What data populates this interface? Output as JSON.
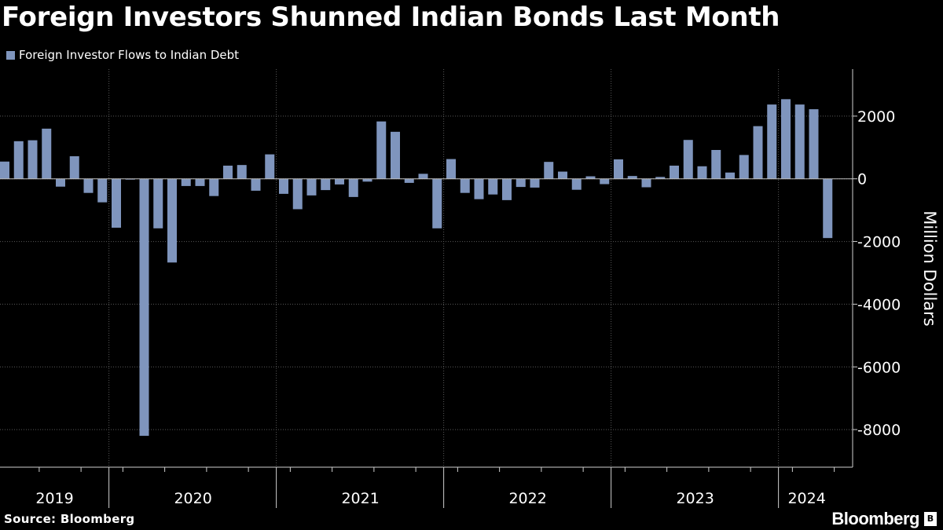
{
  "title": "Foreign Investors Shunned Indian Bonds Last Month",
  "legend": {
    "label": "Foreign Investor Flows to Indian Debt",
    "color": "#7f95bd"
  },
  "source": "Source: Bloomberg",
  "brand": "Bloomberg",
  "colors": {
    "bar": "#7f95bd",
    "grid": "#5a5a5a",
    "axis": "#cfcfcf",
    "background": "#000000"
  },
  "chart_data": {
    "type": "bar",
    "title": "Foreign Investors Shunned Indian Bonds Last Month",
    "xlabel": "",
    "ylabel": "Million Dollars",
    "ylim": [
      -9200,
      3500
    ],
    "yticks": [
      2000,
      0,
      -2000,
      -4000,
      -6000,
      -8000
    ],
    "year_labels": [
      "2019",
      "2020",
      "2021",
      "2022",
      "2023",
      "2024"
    ],
    "series": [
      {
        "name": "Foreign Investor Flows to Indian Debt",
        "values": [
          550,
          1200,
          1230,
          1600,
          -250,
          720,
          -450,
          -750,
          -1560,
          0,
          -8200,
          -1580,
          -2670,
          -230,
          -230,
          -550,
          420,
          440,
          -380,
          780,
          -480,
          -970,
          -530,
          -360,
          -180,
          -580,
          -90,
          1830,
          1500,
          -130,
          160,
          -1580,
          630,
          -450,
          -650,
          -500,
          -680,
          -260,
          -280,
          540,
          230,
          -350,
          80,
          -170,
          620,
          90,
          -270,
          60,
          420,
          1240,
          400,
          920,
          200,
          760,
          1680,
          2370,
          2540,
          2370,
          2220,
          -1890
        ]
      }
    ]
  }
}
